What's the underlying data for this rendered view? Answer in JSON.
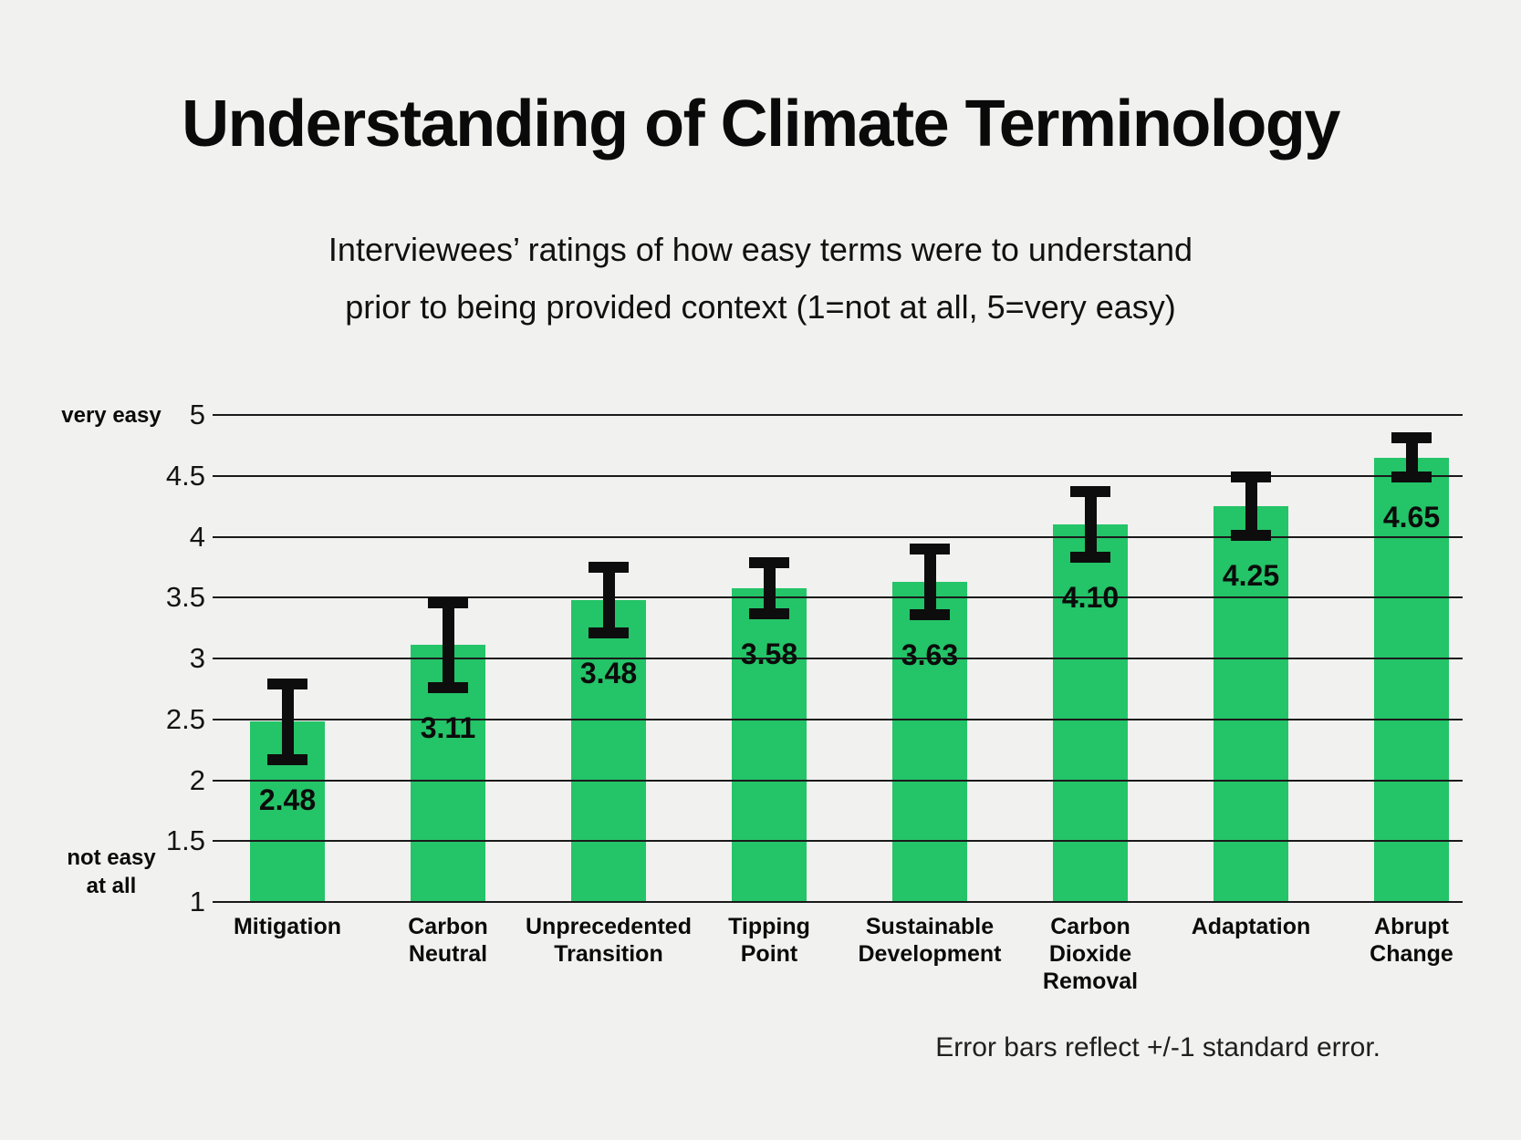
{
  "header": {
    "title": "Understanding of Climate Terminology",
    "subtitle_line1": "Interviewees’ ratings of how easy terms were to understand",
    "subtitle_line2": "prior to being provided context (1=not at all, 5=very easy)"
  },
  "footer": {
    "note": "Error bars reflect +/-1 standard error."
  },
  "colors": {
    "background": "#F1F1EF",
    "bar": "#24C468",
    "grid": "#1A1A1A",
    "error_bar": "#0D0D0D",
    "text": "#0B0B0B"
  },
  "y_axis": {
    "top_label": "very easy",
    "bottom_label_line1": "not easy",
    "bottom_label_line2": "at all",
    "min": 1,
    "max": 5
  },
  "chart_data": {
    "type": "bar",
    "title": "Understanding of Climate Terminology",
    "subtitle": "Interviewees’ ratings of how easy terms were to understand prior to being provided context (1=not at all, 5=very easy)",
    "categories": [
      "Mitigation",
      "Carbon Neutral",
      "Unprecedented Transition",
      "Tipping Point",
      "Sustainable Development",
      "Carbon Dioxide Removal",
      "Adaptation",
      "Abrupt Change"
    ],
    "categories_lines": [
      [
        "Mitigation"
      ],
      [
        "Carbon",
        "Neutral"
      ],
      [
        "Unprecedented",
        "Transition"
      ],
      [
        "Tipping",
        "Point"
      ],
      [
        "Sustainable",
        "Development"
      ],
      [
        "Carbon",
        "Dioxide",
        "Removal"
      ],
      [
        "Adaptation"
      ],
      [
        "Abrupt",
        "Change"
      ]
    ],
    "values": [
      2.48,
      3.11,
      3.48,
      3.58,
      3.63,
      4.1,
      4.25,
      4.65
    ],
    "value_labels": [
      "2.48",
      "3.11",
      "3.48",
      "3.58",
      "3.63",
      "4.10",
      "4.25",
      "4.65"
    ],
    "standard_errors": [
      0.31,
      0.35,
      0.27,
      0.21,
      0.27,
      0.27,
      0.24,
      0.16
    ],
    "ylim": [
      1,
      5
    ],
    "yticks": [
      "5",
      "4.5",
      "4",
      "3.5",
      "3",
      "2.5",
      "2",
      "1.5",
      "1"
    ],
    "ylabel_top": "very easy",
    "ylabel_bottom": "not easy at all",
    "xlabel": "",
    "ylabel": "",
    "grid": "horizontal",
    "legend": "none",
    "annotation": "Error bars reflect +/-1 standard error."
  }
}
